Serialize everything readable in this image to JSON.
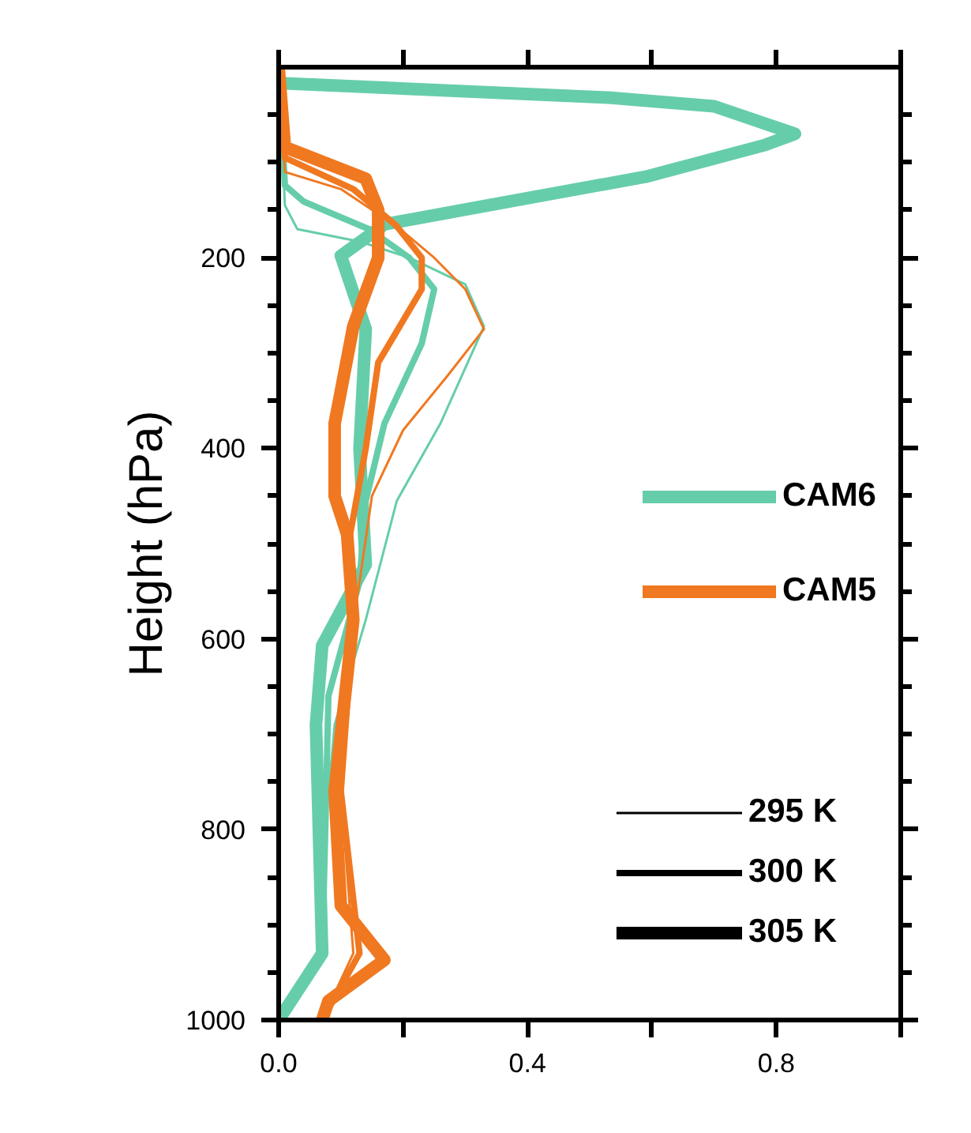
{
  "chart_data": {
    "type": "line",
    "ylabel": "Height (hPa)",
    "xlim": [
      0,
      1.0
    ],
    "ylim": [
      1000,
      0
    ],
    "xticks": [
      {
        "value": 0,
        "label": "0.0"
      },
      {
        "value": 0.2,
        "label": null
      },
      0.4,
      {
        "value": 0.6,
        "label": null
      },
      0.8,
      {
        "value": 1.0,
        "label": null
      }
    ],
    "yticks": [
      {
        "value": 50,
        "label": null
      },
      {
        "value": 100,
        "label": null
      },
      {
        "value": 150,
        "label": null
      },
      200,
      {
        "value": 250,
        "label": null
      },
      {
        "value": 300,
        "label": null
      },
      {
        "value": 350,
        "label": null
      },
      400,
      {
        "value": 450,
        "label": null
      },
      {
        "value": 500,
        "label": null
      },
      {
        "value": 550,
        "label": null
      },
      600,
      {
        "value": 650,
        "label": null
      },
      {
        "value": 700,
        "label": null
      },
      {
        "value": 750,
        "label": null
      },
      800,
      {
        "value": 850,
        "label": null
      },
      {
        "value": 900,
        "label": null
      },
      {
        "value": 950,
        "label": null
      },
      1000
    ],
    "grid": false,
    "legend": "right",
    "line_style": "solid",
    "marker": "none",
    "annotations": [
      "295 K",
      "300 K",
      "305 K"
    ],
    "series": [
      {
        "color": "#66cdaa",
        "x": [
          0.0,
          0.01,
          0.03,
          0.13,
          0.21,
          0.3,
          0.33,
          0.26,
          0.19,
          0.16,
          0.14,
          0.09,
          0.075,
          0.07,
          0.0
        ],
        "values": [
          0,
          145,
          170,
          183,
          200,
          228,
          272,
          374,
          455,
          530,
          580,
          690,
          800,
          930,
          1000
        ]
      },
      {
        "color": "#66cdaa",
        "x": [
          0.0,
          0.01,
          0.04,
          0.145,
          0.21,
          0.25,
          0.23,
          0.17,
          0.14,
          0.13,
          0.08,
          0.075,
          0.07,
          0.0
        ],
        "values": [
          0,
          124,
          141,
          170,
          200,
          233,
          290,
          374,
          455,
          540,
          660,
          800,
          930,
          1000
        ]
      },
      {
        "name": "CAM6",
        "color": "#66cdaa",
        "x": [
          0.01,
          0.53,
          0.7,
          0.83,
          0.78,
          0.59,
          0.37,
          0.17,
          0.1,
          0.14,
          0.13,
          0.14,
          0.07,
          0.06,
          0.07,
          0.0
        ],
        "values": [
          17,
          32,
          41,
          70,
          82,
          115,
          141,
          165,
          198,
          275,
          400,
          522,
          607,
          690,
          930,
          1000
        ]
      },
      {
        "color": "#f07820",
        "x": [
          0.0,
          0.01,
          0.1,
          0.19,
          0.25,
          0.3,
          0.33,
          0.27,
          0.2,
          0.15,
          0.13,
          0.12,
          0.1,
          0.12,
          0.07
        ],
        "values": [
          0,
          110,
          128,
          167,
          200,
          233,
          275,
          325,
          381,
          450,
          540,
          580,
          760,
          930,
          1000
        ]
      },
      {
        "color": "#f07820",
        "x": [
          0.0,
          0.01,
          0.12,
          0.19,
          0.23,
          0.23,
          0.16,
          0.14,
          0.115,
          0.12,
          0.1,
          0.13,
          0.07
        ],
        "values": [
          0,
          95,
          128,
          167,
          200,
          233,
          310,
          400,
          490,
          580,
          760,
          930,
          1000
        ]
      },
      {
        "name": "CAM5",
        "color": "#f07820",
        "x": [
          0.0,
          0.01,
          0.14,
          0.16,
          0.16,
          0.12,
          0.09,
          0.09,
          0.11,
          0.12,
          0.09,
          0.1,
          0.17,
          0.08,
          0.07
        ],
        "values": [
          0,
          84,
          117,
          150,
          200,
          272,
          374,
          450,
          490,
          580,
          760,
          880,
          937,
          980,
          1000
        ]
      }
    ]
  }
}
